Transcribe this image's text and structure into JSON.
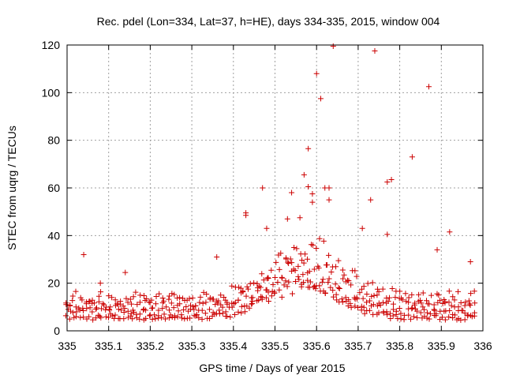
{
  "chart_data": {
    "type": "scatter",
    "title": "Rec. pdel (Lon=334, Lat=37, h=HE), days 334-335, 2015, window 004",
    "xlabel": "GPS time / Days of year 2015",
    "ylabel": "STEC from uqrg / TECUs",
    "xlim": [
      335,
      336
    ],
    "ylim": [
      0,
      120
    ],
    "xticks": [
      "335",
      "335.1",
      "335.2",
      "335.3",
      "335.4",
      "335.5",
      "335.6",
      "335.7",
      "335.8",
      "335.9",
      "336"
    ],
    "yticks": [
      "0",
      "20",
      "40",
      "60",
      "80",
      "100",
      "120"
    ],
    "grid": true,
    "marker": "+",
    "color": "#cc0000",
    "series_shape": {
      "time_range": [
        335.0,
        335.98
      ],
      "bands": [
        {
          "base": 5.5,
          "peak": 19,
          "peak_at": 335.57
        },
        {
          "base": 8,
          "peak": 22,
          "peak_at": 335.56
        },
        {
          "base": 11,
          "peak": 28,
          "peak_at": 335.57
        },
        {
          "base": 13.5,
          "peak": 35,
          "peak_at": 335.58
        }
      ]
    },
    "outliers": [
      [
        335.04,
        32
      ],
      [
        335.08,
        20
      ],
      [
        335.14,
        24.5
      ],
      [
        335.36,
        31
      ],
      [
        335.43,
        48.5
      ],
      [
        335.43,
        49.5
      ],
      [
        335.47,
        60
      ],
      [
        335.48,
        43
      ],
      [
        335.53,
        47
      ],
      [
        335.54,
        58
      ],
      [
        335.56,
        47.5
      ],
      [
        335.57,
        65.5
      ],
      [
        335.58,
        60.5
      ],
      [
        335.58,
        76.5
      ],
      [
        335.59,
        54
      ],
      [
        335.59,
        57.5
      ],
      [
        335.6,
        108
      ],
      [
        335.61,
        97.5
      ],
      [
        335.62,
        60
      ],
      [
        335.63,
        60
      ],
      [
        335.63,
        55
      ],
      [
        335.64,
        119.5
      ],
      [
        335.71,
        43
      ],
      [
        335.73,
        55
      ],
      [
        335.74,
        117.5
      ],
      [
        335.77,
        62.5
      ],
      [
        335.77,
        40.5
      ],
      [
        335.78,
        63.5
      ],
      [
        335.83,
        73
      ],
      [
        335.87,
        102.5
      ],
      [
        335.89,
        34
      ],
      [
        335.92,
        41.5
      ],
      [
        335.97,
        29
      ]
    ]
  }
}
